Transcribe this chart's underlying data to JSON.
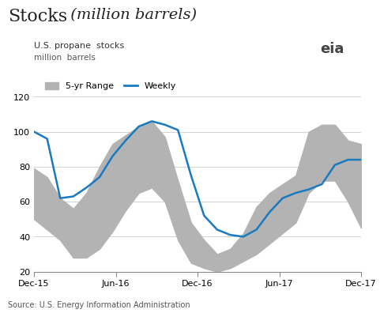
{
  "title_main": "Stocks",
  "title_italic": " (million barrels)",
  "subtitle": "U.S. propane  stocks",
  "subtitle2": "million  barrels",
  "source": "Source: U.S. Energy Information Administration",
  "ylim": [
    20,
    120
  ],
  "yticks": [
    20,
    40,
    60,
    80,
    100,
    120
  ],
  "background_color": "#ffffff",
  "range_color": "#b3b3b3",
  "weekly_color": "#1a7abf",
  "x_labels": [
    "Dec-15",
    "Jun-16",
    "Dec-16",
    "Jun-17",
    "Dec-17"
  ],
  "x_positions": [
    0,
    6,
    12,
    18,
    24
  ],
  "range_upper": [
    79,
    74,
    62,
    56,
    65,
    80,
    93,
    98,
    103,
    106,
    97,
    72,
    48,
    38,
    30,
    33,
    42,
    57,
    65,
    70,
    75,
    100,
    104,
    104,
    95,
    93
  ],
  "range_lower": [
    50,
    44,
    38,
    28,
    28,
    33,
    43,
    55,
    65,
    68,
    60,
    38,
    25,
    22,
    20,
    22,
    26,
    30,
    36,
    42,
    48,
    65,
    72,
    72,
    60,
    45
  ],
  "weekly": [
    100,
    96,
    62,
    63,
    68,
    74,
    86,
    95,
    103,
    106,
    104,
    101,
    75,
    52,
    44,
    41,
    40,
    44,
    54,
    62,
    65,
    67,
    70,
    81,
    84,
    84
  ]
}
